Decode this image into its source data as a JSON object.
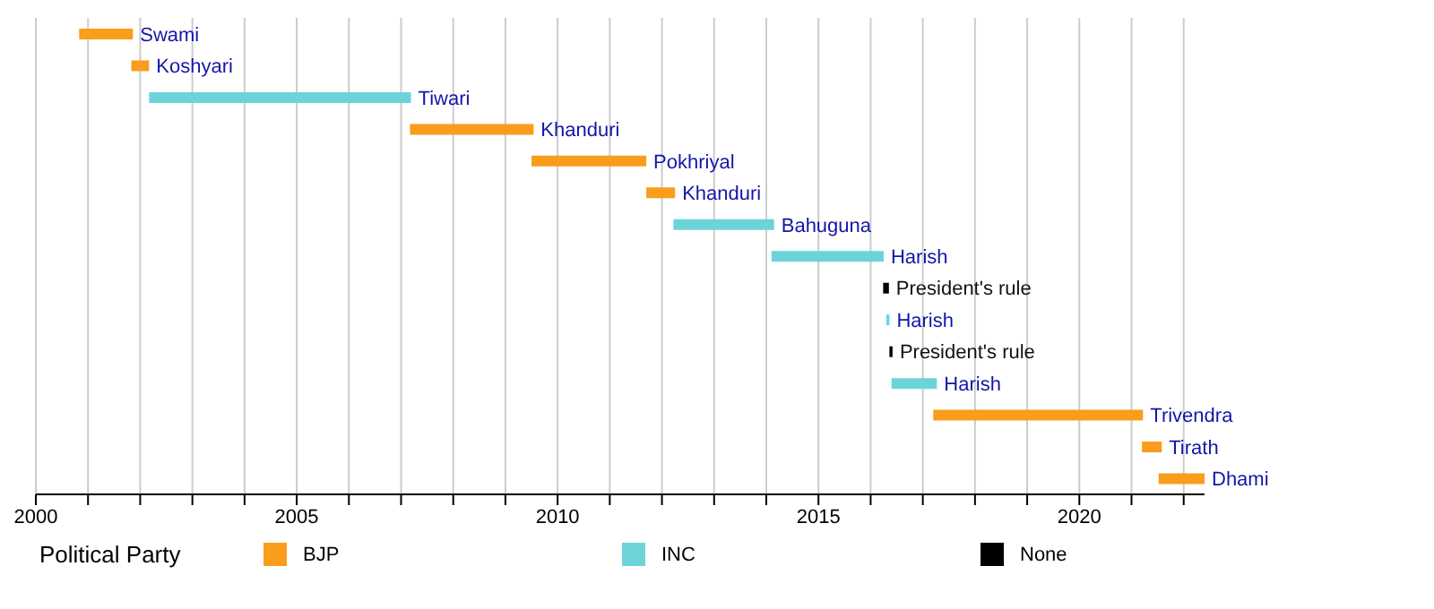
{
  "chart_data": {
    "type": "bar",
    "orientation": "horizontal",
    "legend_title": "Political Party",
    "legend": "bottom",
    "grid": "x",
    "categories": [
      "Swami",
      "Koshyari",
      "Tiwari",
      "Khanduri",
      "Pokhriyal",
      "Khanduri",
      "Bahuguna",
      "Harish",
      "President's rule",
      "Harish",
      "President's rule",
      "Harish",
      "Trivendra",
      "Tirath",
      "Dhami"
    ],
    "series": [
      {
        "name": "BJP",
        "color": "#f99d1c",
        "base": [
          2000.83,
          2001.83,
          null,
          2007.17,
          2009.5,
          2011.7,
          null,
          null,
          null,
          null,
          null,
          null,
          2017.2,
          2021.2,
          2021.52
        ],
        "values": [
          1.03,
          0.34,
          null,
          2.37,
          2.2,
          0.55,
          null,
          null,
          null,
          null,
          null,
          null,
          4.02,
          0.38,
          0.88
        ]
      },
      {
        "name": "INC",
        "color": "#6cd4d9",
        "base": [
          null,
          null,
          2002.17,
          null,
          null,
          null,
          2012.22,
          2014.1,
          null,
          2016.3,
          null,
          2016.4,
          null,
          null,
          null
        ],
        "values": [
          null,
          null,
          5.02,
          null,
          null,
          null,
          1.93,
          2.15,
          null,
          0.06,
          null,
          0.87,
          null,
          null,
          null
        ]
      },
      {
        "name": "None",
        "color": "#000000",
        "base": [
          null,
          null,
          null,
          null,
          null,
          null,
          null,
          null,
          2016.24,
          null,
          2016.36,
          null,
          null,
          null,
          null
        ],
        "values": [
          null,
          null,
          null,
          null,
          null,
          null,
          null,
          null,
          0.11,
          null,
          0.06,
          null,
          null,
          null,
          null
        ]
      }
    ],
    "xlim": [
      2000,
      2022.4
    ],
    "xticks": [
      2000,
      {
        "value": 2001,
        "label": null
      },
      {
        "value": 2002,
        "label": null
      },
      {
        "value": 2003,
        "label": null
      },
      {
        "value": 2004,
        "label": null
      },
      2005,
      {
        "value": 2006,
        "label": null
      },
      {
        "value": 2007,
        "label": null
      },
      {
        "value": 2008,
        "label": null
      },
      {
        "value": 2009,
        "label": null
      },
      2010,
      {
        "value": 2011,
        "label": null
      },
      {
        "value": 2012,
        "label": null
      },
      {
        "value": 2013,
        "label": null
      },
      {
        "value": 2014,
        "label": null
      },
      2015,
      {
        "value": 2016,
        "label": null
      },
      {
        "value": 2017,
        "label": null
      },
      {
        "value": 2018,
        "label": null
      },
      {
        "value": 2019,
        "label": null
      },
      2020,
      {
        "value": 2021,
        "label": null
      },
      {
        "value": 2022,
        "label": null
      }
    ]
  }
}
